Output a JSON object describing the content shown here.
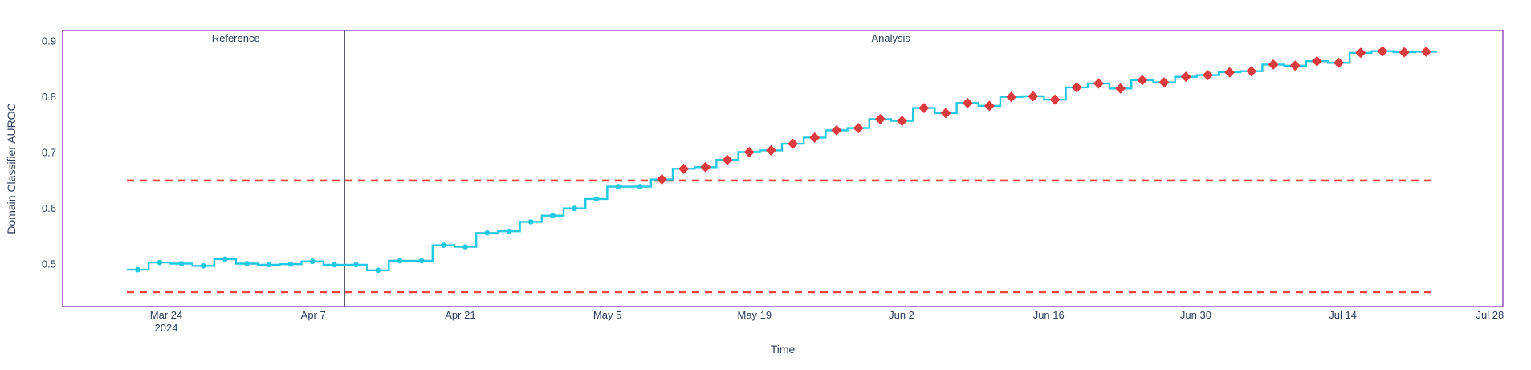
{
  "chart_data": {
    "type": "line",
    "subtype": "step-mid",
    "title": "",
    "xlabel": "Time",
    "ylabel": "Domain Classifier AUROC",
    "grid": false,
    "legend": "none",
    "ylim": [
      0.424,
      0.919
    ],
    "y_ticks": [
      0.9,
      0.8,
      0.7,
      0.6,
      0.5
    ],
    "x_ticks": [
      {
        "label": "Mar 24",
        "sublabel": "2024",
        "day": 0
      },
      {
        "label": "Apr 7",
        "day": 14
      },
      {
        "label": "Apr 21",
        "day": 28
      },
      {
        "label": "May 5",
        "day": 42
      },
      {
        "label": "May 19",
        "day": 56
      },
      {
        "label": "Jun 2",
        "day": 70
      },
      {
        "label": "Jun 16",
        "day": 84
      },
      {
        "label": "Jun 30",
        "day": 98
      },
      {
        "label": "Jul 14",
        "day": 112
      },
      {
        "label": "Jul 28",
        "day": 126
      }
    ],
    "separator_day": 17,
    "regions": [
      {
        "name": "Reference"
      },
      {
        "name": "Analysis"
      }
    ],
    "thresholds": [
      {
        "name": "upper",
        "value": 0.65
      },
      {
        "name": "lower",
        "value": 0.45
      }
    ],
    "series": [
      {
        "name": "Domain Classifier AUROC",
        "points": [
          {
            "date": "Mar 21",
            "value": 0.49,
            "alert": false
          },
          {
            "date": "Mar 23",
            "value": 0.503,
            "alert": false
          },
          {
            "date": "Mar 25",
            "value": 0.501,
            "alert": false
          },
          {
            "date": "Mar 27",
            "value": 0.497,
            "alert": false
          },
          {
            "date": "Mar 30",
            "value": 0.509,
            "alert": false
          },
          {
            "date": "Apr 1",
            "value": 0.501,
            "alert": false
          },
          {
            "date": "Apr 3",
            "value": 0.499,
            "alert": false
          },
          {
            "date": "Apr 5",
            "value": 0.5,
            "alert": false
          },
          {
            "date": "Apr 7",
            "value": 0.505,
            "alert": false
          },
          {
            "date": "Apr 9",
            "value": 0.499,
            "alert": false
          },
          {
            "date": "Apr 11",
            "value": 0.499,
            "alert": false
          },
          {
            "date": "Apr 13",
            "value": 0.489,
            "alert": false
          },
          {
            "date": "Apr 15",
            "value": 0.506,
            "alert": false
          },
          {
            "date": "Apr 17",
            "value": 0.506,
            "alert": false
          },
          {
            "date": "Apr 19",
            "value": 0.534,
            "alert": false
          },
          {
            "date": "Apr 21",
            "value": 0.531,
            "alert": false
          },
          {
            "date": "Apr 24",
            "value": 0.556,
            "alert": false
          },
          {
            "date": "Apr 26",
            "value": 0.559,
            "alert": false
          },
          {
            "date": "Apr 28",
            "value": 0.576,
            "alert": false
          },
          {
            "date": "Apr 30",
            "value": 0.587,
            "alert": false
          },
          {
            "date": "May 2",
            "value": 0.6,
            "alert": false
          },
          {
            "date": "May 4",
            "value": 0.617,
            "alert": false
          },
          {
            "date": "May 6",
            "value": 0.639,
            "alert": false
          },
          {
            "date": "May 8",
            "value": 0.639,
            "alert": false
          },
          {
            "date": "May 10",
            "value": 0.652,
            "alert": true
          },
          {
            "date": "May 12",
            "value": 0.671,
            "alert": true
          },
          {
            "date": "May 14",
            "value": 0.674,
            "alert": true
          },
          {
            "date": "May 16",
            "value": 0.687,
            "alert": true
          },
          {
            "date": "May 19",
            "value": 0.701,
            "alert": true
          },
          {
            "date": "May 21",
            "value": 0.704,
            "alert": true
          },
          {
            "date": "May 23",
            "value": 0.716,
            "alert": true
          },
          {
            "date": "May 25",
            "value": 0.727,
            "alert": true
          },
          {
            "date": "May 27",
            "value": 0.74,
            "alert": true
          },
          {
            "date": "May 29",
            "value": 0.744,
            "alert": true
          },
          {
            "date": "May 31",
            "value": 0.76,
            "alert": true
          },
          {
            "date": "Jun 2",
            "value": 0.757,
            "alert": true
          },
          {
            "date": "Jun 4",
            "value": 0.78,
            "alert": true
          },
          {
            "date": "Jun 6",
            "value": 0.771,
            "alert": true
          },
          {
            "date": "Jun 8",
            "value": 0.789,
            "alert": true
          },
          {
            "date": "Jun 10",
            "value": 0.784,
            "alert": true
          },
          {
            "date": "Jun 13",
            "value": 0.8,
            "alert": true
          },
          {
            "date": "Jun 15",
            "value": 0.801,
            "alert": true
          },
          {
            "date": "Jun 17",
            "value": 0.795,
            "alert": true
          },
          {
            "date": "Jun 19",
            "value": 0.817,
            "alert": true
          },
          {
            "date": "Jun 21",
            "value": 0.824,
            "alert": true
          },
          {
            "date": "Jun 23",
            "value": 0.815,
            "alert": true
          },
          {
            "date": "Jun 25",
            "value": 0.83,
            "alert": true
          },
          {
            "date": "Jun 27",
            "value": 0.826,
            "alert": true
          },
          {
            "date": "Jun 29",
            "value": 0.836,
            "alert": true
          },
          {
            "date": "Jul 1",
            "value": 0.839,
            "alert": true
          },
          {
            "date": "Jul 3",
            "value": 0.844,
            "alert": true
          },
          {
            "date": "Jul 5",
            "value": 0.846,
            "alert": true
          },
          {
            "date": "Jul 8",
            "value": 0.858,
            "alert": true
          },
          {
            "date": "Jul 10",
            "value": 0.856,
            "alert": true
          },
          {
            "date": "Jul 12",
            "value": 0.864,
            "alert": true
          },
          {
            "date": "Jul 14",
            "value": 0.861,
            "alert": true
          },
          {
            "date": "Jul 16",
            "value": 0.879,
            "alert": true
          },
          {
            "date": "Jul 18",
            "value": 0.882,
            "alert": true
          },
          {
            "date": "Jul 20",
            "value": 0.88,
            "alert": true
          },
          {
            "date": "Jul 22",
            "value": 0.881,
            "alert": true
          }
        ]
      }
    ]
  },
  "colors": {
    "line": "#22c7e2",
    "alert": "#dd3a3e",
    "threshold": "#ee4540",
    "border": "#9b5dc7",
    "separator": "#555a63",
    "text": "#2a3f5f",
    "background": "#ffffff"
  }
}
